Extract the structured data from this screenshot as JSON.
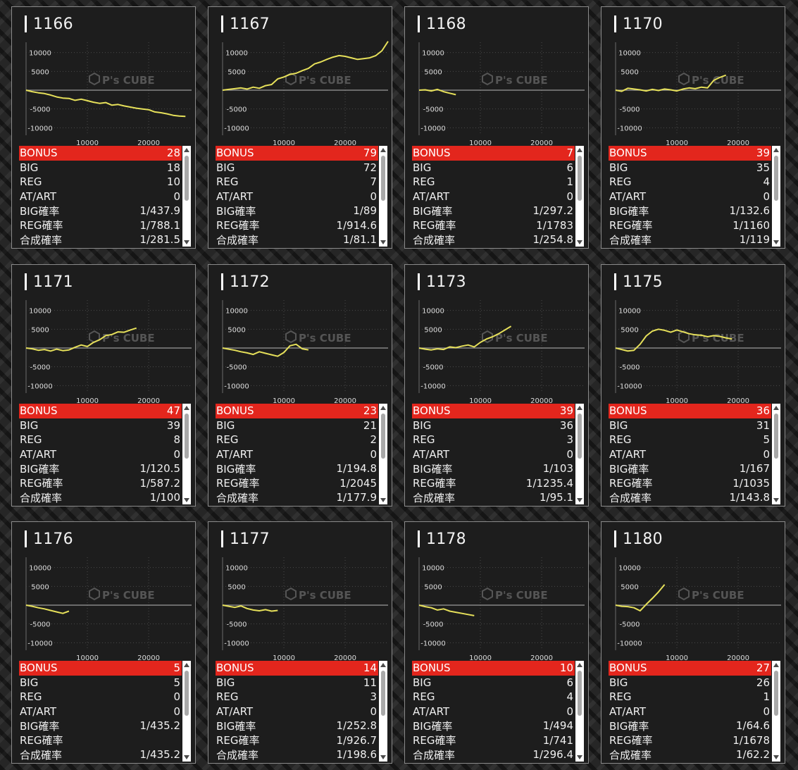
{
  "watermark": {
    "brand": "P's CUBE"
  },
  "colors": {
    "line": "#e6e05a",
    "bonus_bg": "#e3261d",
    "card_bg": "#1d1d1d"
  },
  "labels": {
    "bonus": "BONUS",
    "big": "BIG",
    "reg": "REG",
    "atart": "AT/ART",
    "big_rate": "BIG確率",
    "reg_rate": "REG確率",
    "total_rate": "合成確率"
  },
  "machines": [
    {
      "id": "1166",
      "bonus": "28",
      "big": "18",
      "reg": "10",
      "atart": "0",
      "big_rate": "1/437.9",
      "reg_rate": "1/788.1",
      "total_rate": "1/281.5",
      "chart_data": {
        "type": "line",
        "x_ticks": [
          "10000",
          "20000"
        ],
        "y_ticks": [
          "10000",
          "5000",
          "-5000",
          "-10000"
        ],
        "xlim": [
          0,
          27000
        ],
        "ylim": [
          -12000,
          12000
        ],
        "x": [
          0,
          1000,
          2000,
          3000,
          4000,
          5000,
          6000,
          7000,
          8000,
          9000,
          10000,
          11000,
          12000,
          13000,
          14000,
          15000,
          16000,
          17000,
          18000,
          19000,
          20000,
          21000,
          22000,
          23000,
          24000,
          25000,
          26000
        ],
        "y": [
          0,
          -400,
          -700,
          -900,
          -1300,
          -1800,
          -2100,
          -2200,
          -2700,
          -2400,
          -2800,
          -3200,
          -3500,
          -3300,
          -4000,
          -3800,
          -4200,
          -4500,
          -4800,
          -5000,
          -5200,
          -5800,
          -6000,
          -6300,
          -6700,
          -6900,
          -7000
        ]
      }
    },
    {
      "id": "1167",
      "bonus": "79",
      "big": "72",
      "reg": "7",
      "atart": "0",
      "big_rate": "1/89",
      "reg_rate": "1/914.6",
      "total_rate": "1/81.1",
      "chart_data": {
        "type": "line",
        "x_ticks": [
          "10000",
          "20000"
        ],
        "y_ticks": [
          "10000",
          "5000",
          "-5000",
          "-10000"
        ],
        "xlim": [
          0,
          27000
        ],
        "ylim": [
          -12000,
          12000
        ],
        "x": [
          0,
          1000,
          2000,
          3000,
          4000,
          5000,
          6000,
          7000,
          8000,
          9000,
          10000,
          11000,
          12000,
          13000,
          14000,
          15000,
          16000,
          17000,
          18000,
          19000,
          20000,
          21000,
          22000,
          23000,
          24000,
          25000,
          26000,
          27000
        ],
        "y": [
          0,
          200,
          400,
          600,
          300,
          800,
          500,
          1200,
          1500,
          3000,
          3500,
          4200,
          4500,
          5200,
          5800,
          7000,
          7500,
          8200,
          8800,
          9200,
          9000,
          8600,
          8200,
          8400,
          8600,
          9200,
          10500,
          13000
        ]
      }
    },
    {
      "id": "1168",
      "bonus": "7",
      "big": "6",
      "reg": "1",
      "atart": "0",
      "big_rate": "1/297.2",
      "reg_rate": "1/1783",
      "total_rate": "1/254.8",
      "chart_data": {
        "type": "line",
        "x_ticks": [
          "10000",
          "20000"
        ],
        "y_ticks": [
          "10000",
          "5000",
          "-5000",
          "-10000"
        ],
        "xlim": [
          0,
          27000
        ],
        "ylim": [
          -12000,
          12000
        ],
        "x": [
          0,
          1000,
          2000,
          3000,
          4000,
          5000,
          6000
        ],
        "y": [
          0,
          100,
          -200,
          200,
          -400,
          -800,
          -1200
        ]
      }
    },
    {
      "id": "1170",
      "bonus": "39",
      "big": "35",
      "reg": "4",
      "atart": "0",
      "big_rate": "1/132.6",
      "reg_rate": "1/1160",
      "total_rate": "1/119",
      "chart_data": {
        "type": "line",
        "x_ticks": [
          "10000",
          "20000"
        ],
        "y_ticks": [
          "10000",
          "5000",
          "-5000",
          "-10000"
        ],
        "xlim": [
          0,
          27000
        ],
        "ylim": [
          -12000,
          12000
        ],
        "x": [
          0,
          1000,
          2000,
          3000,
          4000,
          5000,
          6000,
          7000,
          8000,
          9000,
          10000,
          11000,
          12000,
          13000,
          14000,
          15000,
          16000,
          17000,
          18000
        ],
        "y": [
          0,
          -300,
          500,
          300,
          100,
          -200,
          200,
          -100,
          300,
          100,
          -200,
          300,
          600,
          400,
          800,
          600,
          2600,
          3400,
          4000
        ]
      }
    },
    {
      "id": "1171",
      "bonus": "47",
      "big": "39",
      "reg": "8",
      "atart": "0",
      "big_rate": "1/120.5",
      "reg_rate": "1/587.2",
      "total_rate": "1/100",
      "chart_data": {
        "type": "line",
        "x_ticks": [
          "10000",
          "20000"
        ],
        "y_ticks": [
          "10000",
          "5000",
          "-5000",
          "-10000"
        ],
        "xlim": [
          0,
          27000
        ],
        "ylim": [
          -12000,
          12000
        ],
        "x": [
          0,
          1000,
          2000,
          3000,
          4000,
          5000,
          6000,
          7000,
          8000,
          9000,
          10000,
          11000,
          12000,
          13000,
          14000,
          15000,
          16000,
          17000,
          18000
        ],
        "y": [
          0,
          -200,
          -600,
          -400,
          -800,
          -300,
          -700,
          -500,
          200,
          800,
          400,
          1500,
          2200,
          3300,
          3600,
          4300,
          4200,
          4800,
          5300
        ]
      }
    },
    {
      "id": "1172",
      "bonus": "23",
      "big": "21",
      "reg": "2",
      "atart": "0",
      "big_rate": "1/194.8",
      "reg_rate": "1/2045",
      "total_rate": "1/177.9",
      "chart_data": {
        "type": "line",
        "x_ticks": [
          "10000",
          "20000"
        ],
        "y_ticks": [
          "10000",
          "5000",
          "-5000",
          "-10000"
        ],
        "xlim": [
          0,
          27000
        ],
        "ylim": [
          -12000,
          12000
        ],
        "x": [
          0,
          1000,
          2000,
          3000,
          4000,
          5000,
          6000,
          7000,
          8000,
          9000,
          10000,
          11000,
          12000,
          13000,
          14000
        ],
        "y": [
          0,
          -300,
          -600,
          -1000,
          -1300,
          -1700,
          -1000,
          -1400,
          -1800,
          -2200,
          -1200,
          600,
          1000,
          -200,
          -500
        ]
      }
    },
    {
      "id": "1173",
      "bonus": "39",
      "big": "36",
      "reg": "3",
      "atart": "0",
      "big_rate": "1/103",
      "reg_rate": "1/1235.4",
      "total_rate": "1/95.1",
      "chart_data": {
        "type": "line",
        "x_ticks": [
          "10000",
          "20000"
        ],
        "y_ticks": [
          "10000",
          "5000",
          "-5000",
          "-10000"
        ],
        "xlim": [
          0,
          27000
        ],
        "ylim": [
          -12000,
          12000
        ],
        "x": [
          0,
          1000,
          2000,
          3000,
          4000,
          5000,
          6000,
          7000,
          8000,
          9000,
          10000,
          11000,
          12000,
          13000,
          14000,
          15000
        ],
        "y": [
          0,
          -300,
          -500,
          -200,
          -400,
          300,
          100,
          500,
          800,
          300,
          1500,
          2400,
          3000,
          3800,
          4800,
          5800
        ]
      }
    },
    {
      "id": "1175",
      "bonus": "36",
      "big": "31",
      "reg": "5",
      "atart": "0",
      "big_rate": "1/167",
      "reg_rate": "1/1035",
      "total_rate": "1/143.8",
      "chart_data": {
        "type": "line",
        "x_ticks": [
          "10000",
          "20000"
        ],
        "y_ticks": [
          "10000",
          "5000",
          "-5000",
          "-10000"
        ],
        "xlim": [
          0,
          27000
        ],
        "ylim": [
          -12000,
          12000
        ],
        "x": [
          0,
          1000,
          2000,
          3000,
          4000,
          5000,
          6000,
          7000,
          8000,
          9000,
          10000,
          11000,
          12000,
          13000,
          14000,
          15000,
          16000,
          17000,
          18000,
          19000
        ],
        "y": [
          0,
          -400,
          -800,
          -600,
          1000,
          3200,
          4500,
          5000,
          4700,
          4200,
          4800,
          4300,
          3800,
          3500,
          3400,
          3000,
          3300,
          3100,
          2700,
          2400
        ]
      }
    },
    {
      "id": "1176",
      "bonus": "5",
      "big": "5",
      "reg": "0",
      "atart": "0",
      "big_rate": "1/435.2",
      "reg_rate": "",
      "total_rate": "1/435.2",
      "chart_data": {
        "type": "line",
        "x_ticks": [
          "10000",
          "20000"
        ],
        "y_ticks": [
          "10000",
          "5000",
          "-5000",
          "-10000"
        ],
        "xlim": [
          0,
          27000
        ],
        "ylim": [
          -12000,
          12000
        ],
        "x": [
          0,
          1000,
          2000,
          3000,
          4000,
          5000,
          6000,
          7000
        ],
        "y": [
          0,
          -300,
          -700,
          -1000,
          -1400,
          -1800,
          -2200,
          -1600
        ]
      }
    },
    {
      "id": "1177",
      "bonus": "14",
      "big": "11",
      "reg": "3",
      "atart": "0",
      "big_rate": "1/252.8",
      "reg_rate": "1/926.7",
      "total_rate": "1/198.6",
      "chart_data": {
        "type": "line",
        "x_ticks": [
          "10000",
          "20000"
        ],
        "y_ticks": [
          "10000",
          "5000",
          "-5000",
          "-10000"
        ],
        "xlim": [
          0,
          27000
        ],
        "ylim": [
          -12000,
          12000
        ],
        "x": [
          0,
          1000,
          2000,
          3000,
          4000,
          5000,
          6000,
          7000,
          8000,
          9000
        ],
        "y": [
          0,
          -300,
          -600,
          -200,
          -900,
          -1300,
          -1500,
          -1200,
          -1600,
          -1400
        ]
      }
    },
    {
      "id": "1178",
      "bonus": "10",
      "big": "6",
      "reg": "4",
      "atart": "0",
      "big_rate": "1/494",
      "reg_rate": "1/741",
      "total_rate": "1/296.4",
      "chart_data": {
        "type": "line",
        "x_ticks": [
          "10000",
          "20000"
        ],
        "y_ticks": [
          "10000",
          "5000",
          "-5000",
          "-10000"
        ],
        "xlim": [
          0,
          27000
        ],
        "ylim": [
          -12000,
          12000
        ],
        "x": [
          0,
          1000,
          2000,
          3000,
          4000,
          5000,
          6000,
          7000,
          8000,
          9000
        ],
        "y": [
          0,
          -400,
          -700,
          -1300,
          -1000,
          -1600,
          -1900,
          -2200,
          -2500,
          -2800
        ]
      }
    },
    {
      "id": "1180",
      "bonus": "27",
      "big": "26",
      "reg": "1",
      "atart": "0",
      "big_rate": "1/64.6",
      "reg_rate": "1/1678",
      "total_rate": "1/62.2",
      "chart_data": {
        "type": "line",
        "x_ticks": [
          "10000",
          "20000"
        ],
        "y_ticks": [
          "10000",
          "5000",
          "-5000",
          "-10000"
        ],
        "xlim": [
          0,
          27000
        ],
        "ylim": [
          -12000,
          12000
        ],
        "x": [
          0,
          1000,
          2000,
          3000,
          4000,
          5000,
          6000,
          7000,
          8000
        ],
        "y": [
          0,
          -300,
          -400,
          -700,
          -1500,
          200,
          1800,
          3500,
          5500
        ]
      }
    }
  ]
}
